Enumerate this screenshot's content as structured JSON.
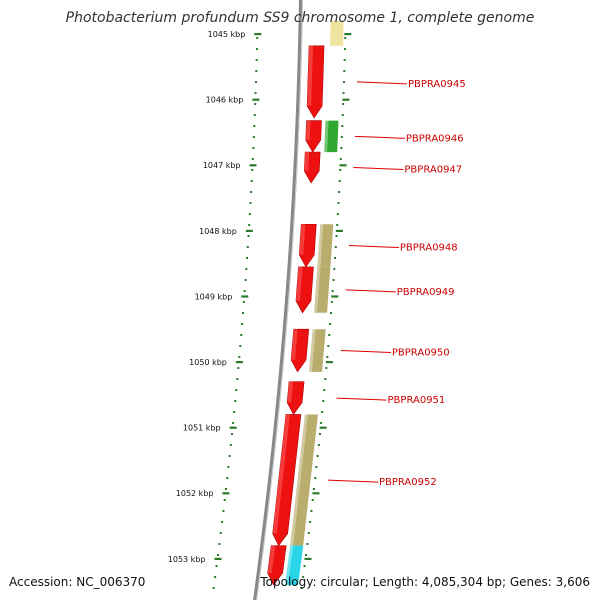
{
  "title": "Photobacterium profundum SS9 chromosome 1, complete genome",
  "footer": {
    "accession": "Accession: NC_006370",
    "summary": "Topology: circular; Length: 4,085,304 bp; Genes: 3,606"
  },
  "scale_labels": [
    "1045 kbp",
    "1046 kbp",
    "1047 kbp",
    "1048 kbp",
    "1049 kbp",
    "1050 kbp",
    "1051 kbp",
    "1052 kbp",
    "1053 kbp"
  ],
  "genes": [
    {
      "label": "",
      "start_kbp": 1044.8,
      "end_kbp": 1045.18,
      "strand": "+",
      "cog_color": "#efe3a0"
    },
    {
      "label": "PBPRA0945",
      "start_kbp": 1045.18,
      "end_kbp": 1046.28,
      "strand": "-",
      "cog_color": ""
    },
    {
      "label": "PBPRA0946",
      "start_kbp": 1046.32,
      "end_kbp": 1046.8,
      "strand": "-",
      "cog_color": "#2ea82e"
    },
    {
      "label": "PBPRA0947",
      "start_kbp": 1046.8,
      "end_kbp": 1047.27,
      "strand": "-",
      "cog_color": ""
    },
    {
      "label": "PBPRA0948",
      "start_kbp": 1047.9,
      "end_kbp": 1048.55,
      "strand": "-",
      "cog_color": "#b9ad6e"
    },
    {
      "label": "PBPRA0949",
      "start_kbp": 1048.55,
      "end_kbp": 1049.25,
      "strand": "-",
      "cog_color": "#b9ad6e"
    },
    {
      "label": "PBPRA0950",
      "start_kbp": 1049.5,
      "end_kbp": 1050.15,
      "strand": "-",
      "cog_color": "#b9ad6e"
    },
    {
      "label": "PBPRA0951",
      "start_kbp": 1050.3,
      "end_kbp": 1050.8,
      "strand": "-",
      "cog_color": ""
    },
    {
      "label": "PBPRA0952",
      "start_kbp": 1050.8,
      "end_kbp": 1052.8,
      "strand": "-",
      "cog_color": "#b9ad6e"
    },
    {
      "label": "",
      "start_kbp": 1052.8,
      "end_kbp": 1053.4,
      "strand": "-",
      "cog_color": "#29d6e8"
    }
  ],
  "colors": {
    "cds": "#ee1111",
    "backbone": "#888888",
    "ticks": "#2a7a2a",
    "label_text": "#cc0000",
    "leader": "#dd0000"
  }
}
